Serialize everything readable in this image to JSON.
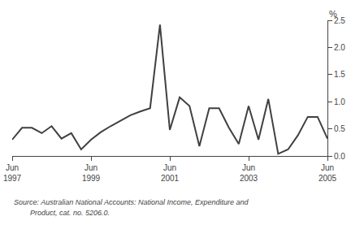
{
  "chart_data": {
    "type": "line",
    "ylabel": "%",
    "annotations": [
      "Source: Australian National Accounts: National Income, Expenditure and",
      "        Product, cat. no. 5206.0."
    ],
    "categories": [
      "Jun\n1997",
      null,
      null,
      null,
      null,
      null,
      null,
      null,
      "Jun\n1999",
      null,
      null,
      null,
      null,
      null,
      null,
      null,
      "Jun\n2001",
      null,
      null,
      null,
      null,
      null,
      null,
      null,
      "Jun\n2003",
      null,
      null,
      null,
      null,
      null,
      null,
      null,
      "Jun\n2005"
    ],
    "values": [
      0.3,
      0.52,
      0.52,
      0.42,
      0.55,
      0.32,
      0.42,
      0.12,
      0.3,
      0.44,
      0.55,
      0.65,
      0.75,
      0.82,
      0.88,
      2.42,
      0.48,
      1.08,
      0.92,
      0.18,
      0.88,
      0.88,
      0.52,
      0.22,
      0.92,
      0.3,
      1.05,
      0.04,
      0.12,
      0.38,
      0.72,
      0.72,
      0.32
    ],
    "color": "#404040",
    "ylim": [
      0.0,
      2.5
    ],
    "yticks": [
      {
        "value": 0,
        "label": "0.0"
      },
      0.5,
      {
        "value": 1,
        "label": "1.0"
      },
      1.5,
      {
        "value": 2,
        "label": "2.0"
      },
      2.5
    ],
    "grid": false
  }
}
